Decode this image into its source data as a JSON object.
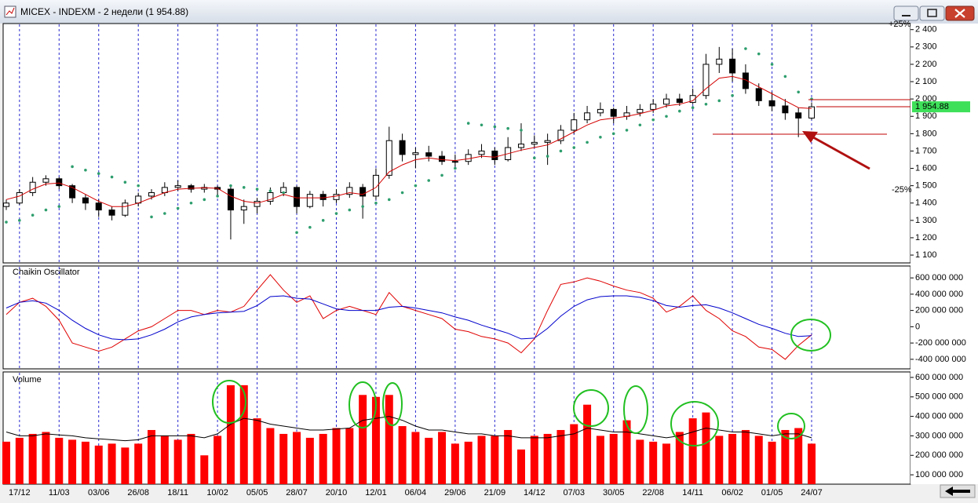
{
  "window": {
    "title": "MICEX - INDEXM - 2 недели (1 954.88)"
  },
  "chart_data": [
    {
      "type": "candlestick",
      "categories": [
        null,
        "17/12",
        null,
        null,
        "11/03",
        null,
        null,
        "03/06",
        null,
        null,
        "26/08",
        null,
        null,
        "18/11",
        null,
        null,
        "10/02",
        null,
        null,
        "05/05",
        null,
        null,
        "28/07",
        null,
        null,
        "20/10",
        null,
        null,
        "12/01",
        null,
        null,
        "06/04",
        null,
        null,
        "29/06",
        null,
        null,
        "21/09",
        null,
        null,
        "14/12",
        null,
        null,
        "07/03",
        null,
        null,
        "30/05",
        null,
        null,
        "22/08",
        null,
        null,
        "14/11",
        null,
        null,
        "06/02",
        null,
        null,
        "01/05",
        null,
        null,
        "24/07"
      ],
      "open": [
        1380,
        1400,
        1460,
        1520,
        1540,
        1500,
        1430,
        1400,
        1360,
        1330,
        1400,
        1440,
        1460,
        1490,
        1500,
        1480,
        1490,
        1480,
        1360,
        1380,
        1410,
        1460,
        1490,
        1380,
        1450,
        1420,
        1450,
        1490,
        1440,
        1560,
        1760,
        1680,
        1690,
        1670,
        1640,
        1640,
        1680,
        1700,
        1650,
        1720,
        1740,
        1750,
        1760,
        1820,
        1880,
        1920,
        1940,
        1900,
        1920,
        1940,
        1970,
        2000,
        1980,
        2020,
        2200,
        2230,
        2150,
        2060,
        1990,
        1960,
        1920,
        1890
      ],
      "high": [
        1420,
        1480,
        1550,
        1560,
        1550,
        1510,
        1450,
        1420,
        1380,
        1420,
        1460,
        1480,
        1520,
        1530,
        1510,
        1510,
        1500,
        1500,
        1420,
        1430,
        1490,
        1520,
        1500,
        1470,
        1470,
        1480,
        1520,
        1510,
        1600,
        1840,
        1800,
        1720,
        1730,
        1700,
        1680,
        1710,
        1740,
        1720,
        1780,
        1860,
        1790,
        1800,
        1850,
        1920,
        1960,
        1980,
        1950,
        1960,
        1970,
        2000,
        2030,
        2030,
        2060,
        2260,
        2300,
        2290,
        2200,
        2090,
        2040,
        2000,
        1950,
        1980
      ],
      "low": [
        1360,
        1390,
        1440,
        1500,
        1480,
        1400,
        1360,
        1320,
        1300,
        1320,
        1380,
        1420,
        1440,
        1470,
        1460,
        1460,
        1440,
        1190,
        1280,
        1340,
        1390,
        1440,
        1340,
        1370,
        1380,
        1400,
        1430,
        1310,
        1420,
        1540,
        1640,
        1600,
        1640,
        1620,
        1610,
        1620,
        1660,
        1620,
        1640,
        1700,
        1720,
        1620,
        1740,
        1800,
        1860,
        1900,
        1860,
        1880,
        1900,
        1920,
        1950,
        1960,
        1970,
        2000,
        2150,
        2100,
        2030,
        1960,
        1930,
        1880,
        1780,
        1880
      ],
      "close": [
        1400,
        1460,
        1520,
        1540,
        1500,
        1430,
        1400,
        1360,
        1330,
        1400,
        1440,
        1460,
        1490,
        1500,
        1480,
        1490,
        1480,
        1360,
        1380,
        1410,
        1460,
        1490,
        1380,
        1450,
        1420,
        1450,
        1490,
        1440,
        1560,
        1760,
        1680,
        1690,
        1670,
        1640,
        1640,
        1680,
        1700,
        1650,
        1720,
        1740,
        1750,
        1760,
        1820,
        1880,
        1920,
        1940,
        1900,
        1920,
        1940,
        1970,
        2000,
        1980,
        2020,
        2200,
        2230,
        2150,
        2060,
        1990,
        1960,
        1920,
        1890,
        1954.88
      ],
      "ma": {
        "color": "#d40000",
        "values": [
          1420,
          1440,
          1480,
          1510,
          1515,
          1490,
          1450,
          1410,
          1380,
          1380,
          1400,
          1430,
          1460,
          1480,
          1485,
          1488,
          1485,
          1440,
          1410,
          1400,
          1420,
          1450,
          1430,
          1430,
          1430,
          1440,
          1460,
          1450,
          1490,
          1580,
          1620,
          1650,
          1660,
          1650,
          1645,
          1655,
          1670,
          1665,
          1685,
          1705,
          1720,
          1735,
          1770,
          1810,
          1850,
          1880,
          1890,
          1900,
          1915,
          1935,
          1960,
          1970,
          1990,
          2060,
          2120,
          2130,
          2110,
          2070,
          2030,
          1990,
          1950,
          1945
        ]
      },
      "sar": {
        "color": "#2e9e6e",
        "values": [
          1290,
          1300,
          1330,
          1360,
          1380,
          1610,
          1590,
          1570,
          1550,
          1520,
          1500,
          1320,
          1340,
          1370,
          1400,
          1420,
          1440,
          1500,
          1490,
          1480,
          1470,
          1460,
          1230,
          1260,
          1300,
          1340,
          1360,
          1380,
          1400,
          1420,
          1460,
          1500,
          1530,
          1560,
          1600,
          1860,
          1850,
          1840,
          1830,
          1820,
          1660,
          1670,
          1700,
          1720,
          1750,
          1780,
          1800,
          1820,
          1850,
          1880,
          1900,
          1930,
          1950,
          1970,
          1990,
          2020,
          2290,
          2260,
          2200,
          2130,
          2040,
          2000
        ]
      },
      "last_price": {
        "value": 1954.88,
        "label": "1 954.88"
      },
      "annotations": [
        "+25%",
        "-25%"
      ],
      "ylim": [
        1055,
        2435
      ],
      "yticks": [
        {
          "value": 1100,
          "label": "1 100"
        },
        {
          "value": 1200,
          "label": "1 200"
        },
        {
          "value": 1300,
          "label": "1 300"
        },
        {
          "value": 1400,
          "label": "1 400"
        },
        {
          "value": 1500,
          "label": "1 500"
        },
        {
          "value": 1600,
          "label": "1 600"
        },
        {
          "value": 1700,
          "label": "1 700"
        },
        {
          "value": 1800,
          "label": "1 800"
        },
        {
          "value": 1900,
          "label": "1 900"
        },
        {
          "value": 2000,
          "label": "2 000"
        },
        {
          "value": 2100,
          "label": "2 100"
        },
        {
          "value": 2200,
          "label": "2 200"
        },
        {
          "value": 2300,
          "label": "2 300"
        },
        {
          "value": 2400,
          "label": "2 400"
        }
      ],
      "grid": true
    },
    {
      "type": "line",
      "title": "Chaikin Oscillator",
      "series": [
        {
          "color": "#e00000",
          "values": [
            150000000,
            300000000,
            350000000,
            250000000,
            80000000,
            -200000000,
            -250000000,
            -300000000,
            -250000000,
            -150000000,
            -50000000,
            0,
            100000000,
            200000000,
            200000000,
            150000000,
            200000000,
            180000000,
            250000000,
            450000000,
            640000000,
            450000000,
            300000000,
            380000000,
            100000000,
            200000000,
            250000000,
            200000000,
            150000000,
            420000000,
            250000000,
            200000000,
            150000000,
            100000000,
            -30000000,
            -60000000,
            -120000000,
            -150000000,
            -200000000,
            -320000000,
            -150000000,
            200000000,
            520000000,
            550000000,
            600000000,
            560000000,
            500000000,
            450000000,
            420000000,
            350000000,
            180000000,
            250000000,
            380000000,
            200000000,
            100000000,
            -50000000,
            -120000000,
            -250000000,
            -280000000,
            -400000000,
            -230000000,
            -100000000
          ]
        },
        {
          "color": "#0000cc",
          "values": [
            230000000,
            300000000,
            320000000,
            290000000,
            200000000,
            80000000,
            -20000000,
            -100000000,
            -150000000,
            -160000000,
            -150000000,
            -100000000,
            -30000000,
            60000000,
            120000000,
            150000000,
            170000000,
            180000000,
            190000000,
            260000000,
            370000000,
            380000000,
            350000000,
            340000000,
            280000000,
            220000000,
            200000000,
            200000000,
            200000000,
            240000000,
            250000000,
            230000000,
            200000000,
            170000000,
            120000000,
            80000000,
            20000000,
            -30000000,
            -80000000,
            -150000000,
            -140000000,
            -20000000,
            130000000,
            250000000,
            330000000,
            370000000,
            380000000,
            380000000,
            360000000,
            320000000,
            260000000,
            240000000,
            260000000,
            270000000,
            230000000,
            170000000,
            100000000,
            30000000,
            -20000000,
            -80000000,
            -120000000,
            -110000000
          ]
        }
      ],
      "ylim": [
        -517000000,
        746000000
      ],
      "yticks": [
        {
          "value": 600000000,
          "label": "600 000 000"
        },
        {
          "value": 400000000,
          "label": "400 000 000"
        },
        {
          "value": 200000000,
          "label": "200 000 000"
        },
        0,
        {
          "value": -200000000,
          "label": "-200 000 000"
        },
        {
          "value": -400000000,
          "label": "-400 000 000"
        }
      ]
    },
    {
      "type": "bar",
      "title": "Volume",
      "color": "#ff0000",
      "values": [
        270000000,
        290000000,
        310000000,
        320000000,
        290000000,
        280000000,
        270000000,
        250000000,
        260000000,
        240000000,
        260000000,
        330000000,
        300000000,
        280000000,
        310000000,
        200000000,
        300000000,
        560000000,
        560000000,
        390000000,
        340000000,
        310000000,
        320000000,
        290000000,
        310000000,
        340000000,
        340000000,
        510000000,
        500000000,
        510000000,
        350000000,
        320000000,
        290000000,
        320000000,
        260000000,
        270000000,
        300000000,
        300000000,
        330000000,
        230000000,
        300000000,
        310000000,
        330000000,
        360000000,
        460000000,
        300000000,
        310000000,
        380000000,
        280000000,
        270000000,
        260000000,
        320000000,
        390000000,
        420000000,
        300000000,
        310000000,
        330000000,
        300000000,
        270000000,
        330000000,
        340000000,
        260000000
      ],
      "average": {
        "color": "#000000",
        "values": [
          320000000,
          300000000,
          300000000,
          310000000,
          305000000,
          300000000,
          290000000,
          285000000,
          280000000,
          275000000,
          280000000,
          300000000,
          300000000,
          300000000,
          300000000,
          290000000,
          310000000,
          360000000,
          390000000,
          380000000,
          360000000,
          350000000,
          340000000,
          330000000,
          330000000,
          335000000,
          340000000,
          380000000,
          390000000,
          400000000,
          380000000,
          350000000,
          330000000,
          330000000,
          320000000,
          310000000,
          310000000,
          300000000,
          300000000,
          290000000,
          290000000,
          290000000,
          300000000,
          310000000,
          340000000,
          330000000,
          320000000,
          320000000,
          310000000,
          300000000,
          290000000,
          300000000,
          320000000,
          340000000,
          330000000,
          320000000,
          320000000,
          310000000,
          300000000,
          310000000,
          310000000,
          290000000
        ]
      },
      "ylim": [
        52000000,
        628000000
      ],
      "yticks": [
        {
          "value": 100000000,
          "label": "100 000 000"
        },
        {
          "value": 200000000,
          "label": "200 000 000"
        },
        {
          "value": 300000000,
          "label": "300 000 000"
        },
        {
          "value": 400000000,
          "label": "400 000 000"
        },
        {
          "value": 500000000,
          "label": "500 000 000"
        },
        {
          "value": 600000000,
          "label": "600 000 000"
        }
      ]
    }
  ]
}
